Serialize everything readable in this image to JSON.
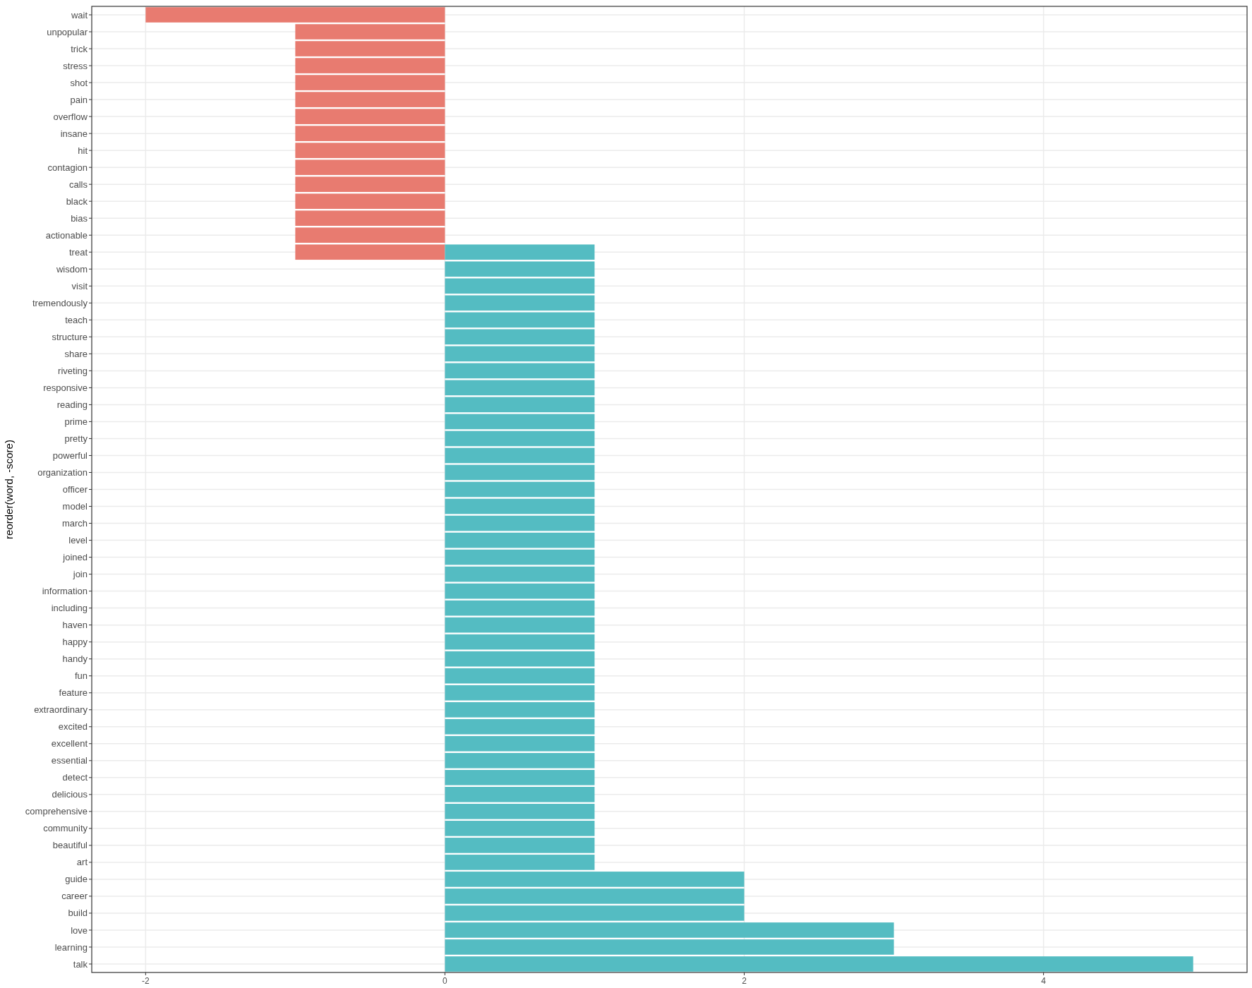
{
  "chart_data": {
    "type": "bar",
    "orientation": "horizontal",
    "ylabel": "reorder(word, -score)",
    "categories": [
      "wait",
      "unpopular",
      "trick",
      "stress",
      "shot",
      "pain",
      "overflow",
      "insane",
      "hit",
      "contagion",
      "calls",
      "black",
      "bias",
      "actionable",
      "treat",
      "wisdom",
      "visit",
      "tremendously",
      "teach",
      "structure",
      "share",
      "riveting",
      "responsive",
      "reading",
      "prime",
      "pretty",
      "powerful",
      "organization",
      "officer",
      "model",
      "march",
      "level",
      "joined",
      "join",
      "information",
      "including",
      "haven",
      "happy",
      "handy",
      "fun",
      "feature",
      "extraordinary",
      "excited",
      "excellent",
      "essential",
      "detect",
      "delicious",
      "comprehensive",
      "community",
      "beautiful",
      "art",
      "guide",
      "career",
      "build",
      "love",
      "learning",
      "talk"
    ],
    "series": [
      {
        "color": "#e87b70",
        "values": [
          -2,
          -1,
          -1,
          -1,
          -1,
          -1,
          -1,
          -1,
          -1,
          -1,
          -1,
          -1,
          -1,
          -1,
          -1,
          null,
          null,
          null,
          null,
          null,
          null,
          null,
          null,
          null,
          null,
          null,
          null,
          null,
          null,
          null,
          null,
          null,
          null,
          null,
          null,
          null,
          null,
          null,
          null,
          null,
          null,
          null,
          null,
          null,
          null,
          null,
          null,
          null,
          null,
          null,
          null,
          null,
          null,
          null,
          null,
          null,
          null
        ]
      },
      {
        "color": "#54bcc2",
        "values": [
          null,
          null,
          null,
          null,
          null,
          null,
          null,
          null,
          null,
          null,
          null,
          null,
          null,
          null,
          1,
          1,
          1,
          1,
          1,
          1,
          1,
          1,
          1,
          1,
          1,
          1,
          1,
          1,
          1,
          1,
          1,
          1,
          1,
          1,
          1,
          1,
          1,
          1,
          1,
          1,
          1,
          1,
          1,
          1,
          1,
          1,
          1,
          1,
          1,
          1,
          1,
          2,
          2,
          2,
          3,
          3,
          5
        ]
      }
    ],
    "xlim": [
      -2.36,
      5.36
    ],
    "xticks": [
      -2,
      0,
      2,
      4
    ],
    "grid": true
  }
}
